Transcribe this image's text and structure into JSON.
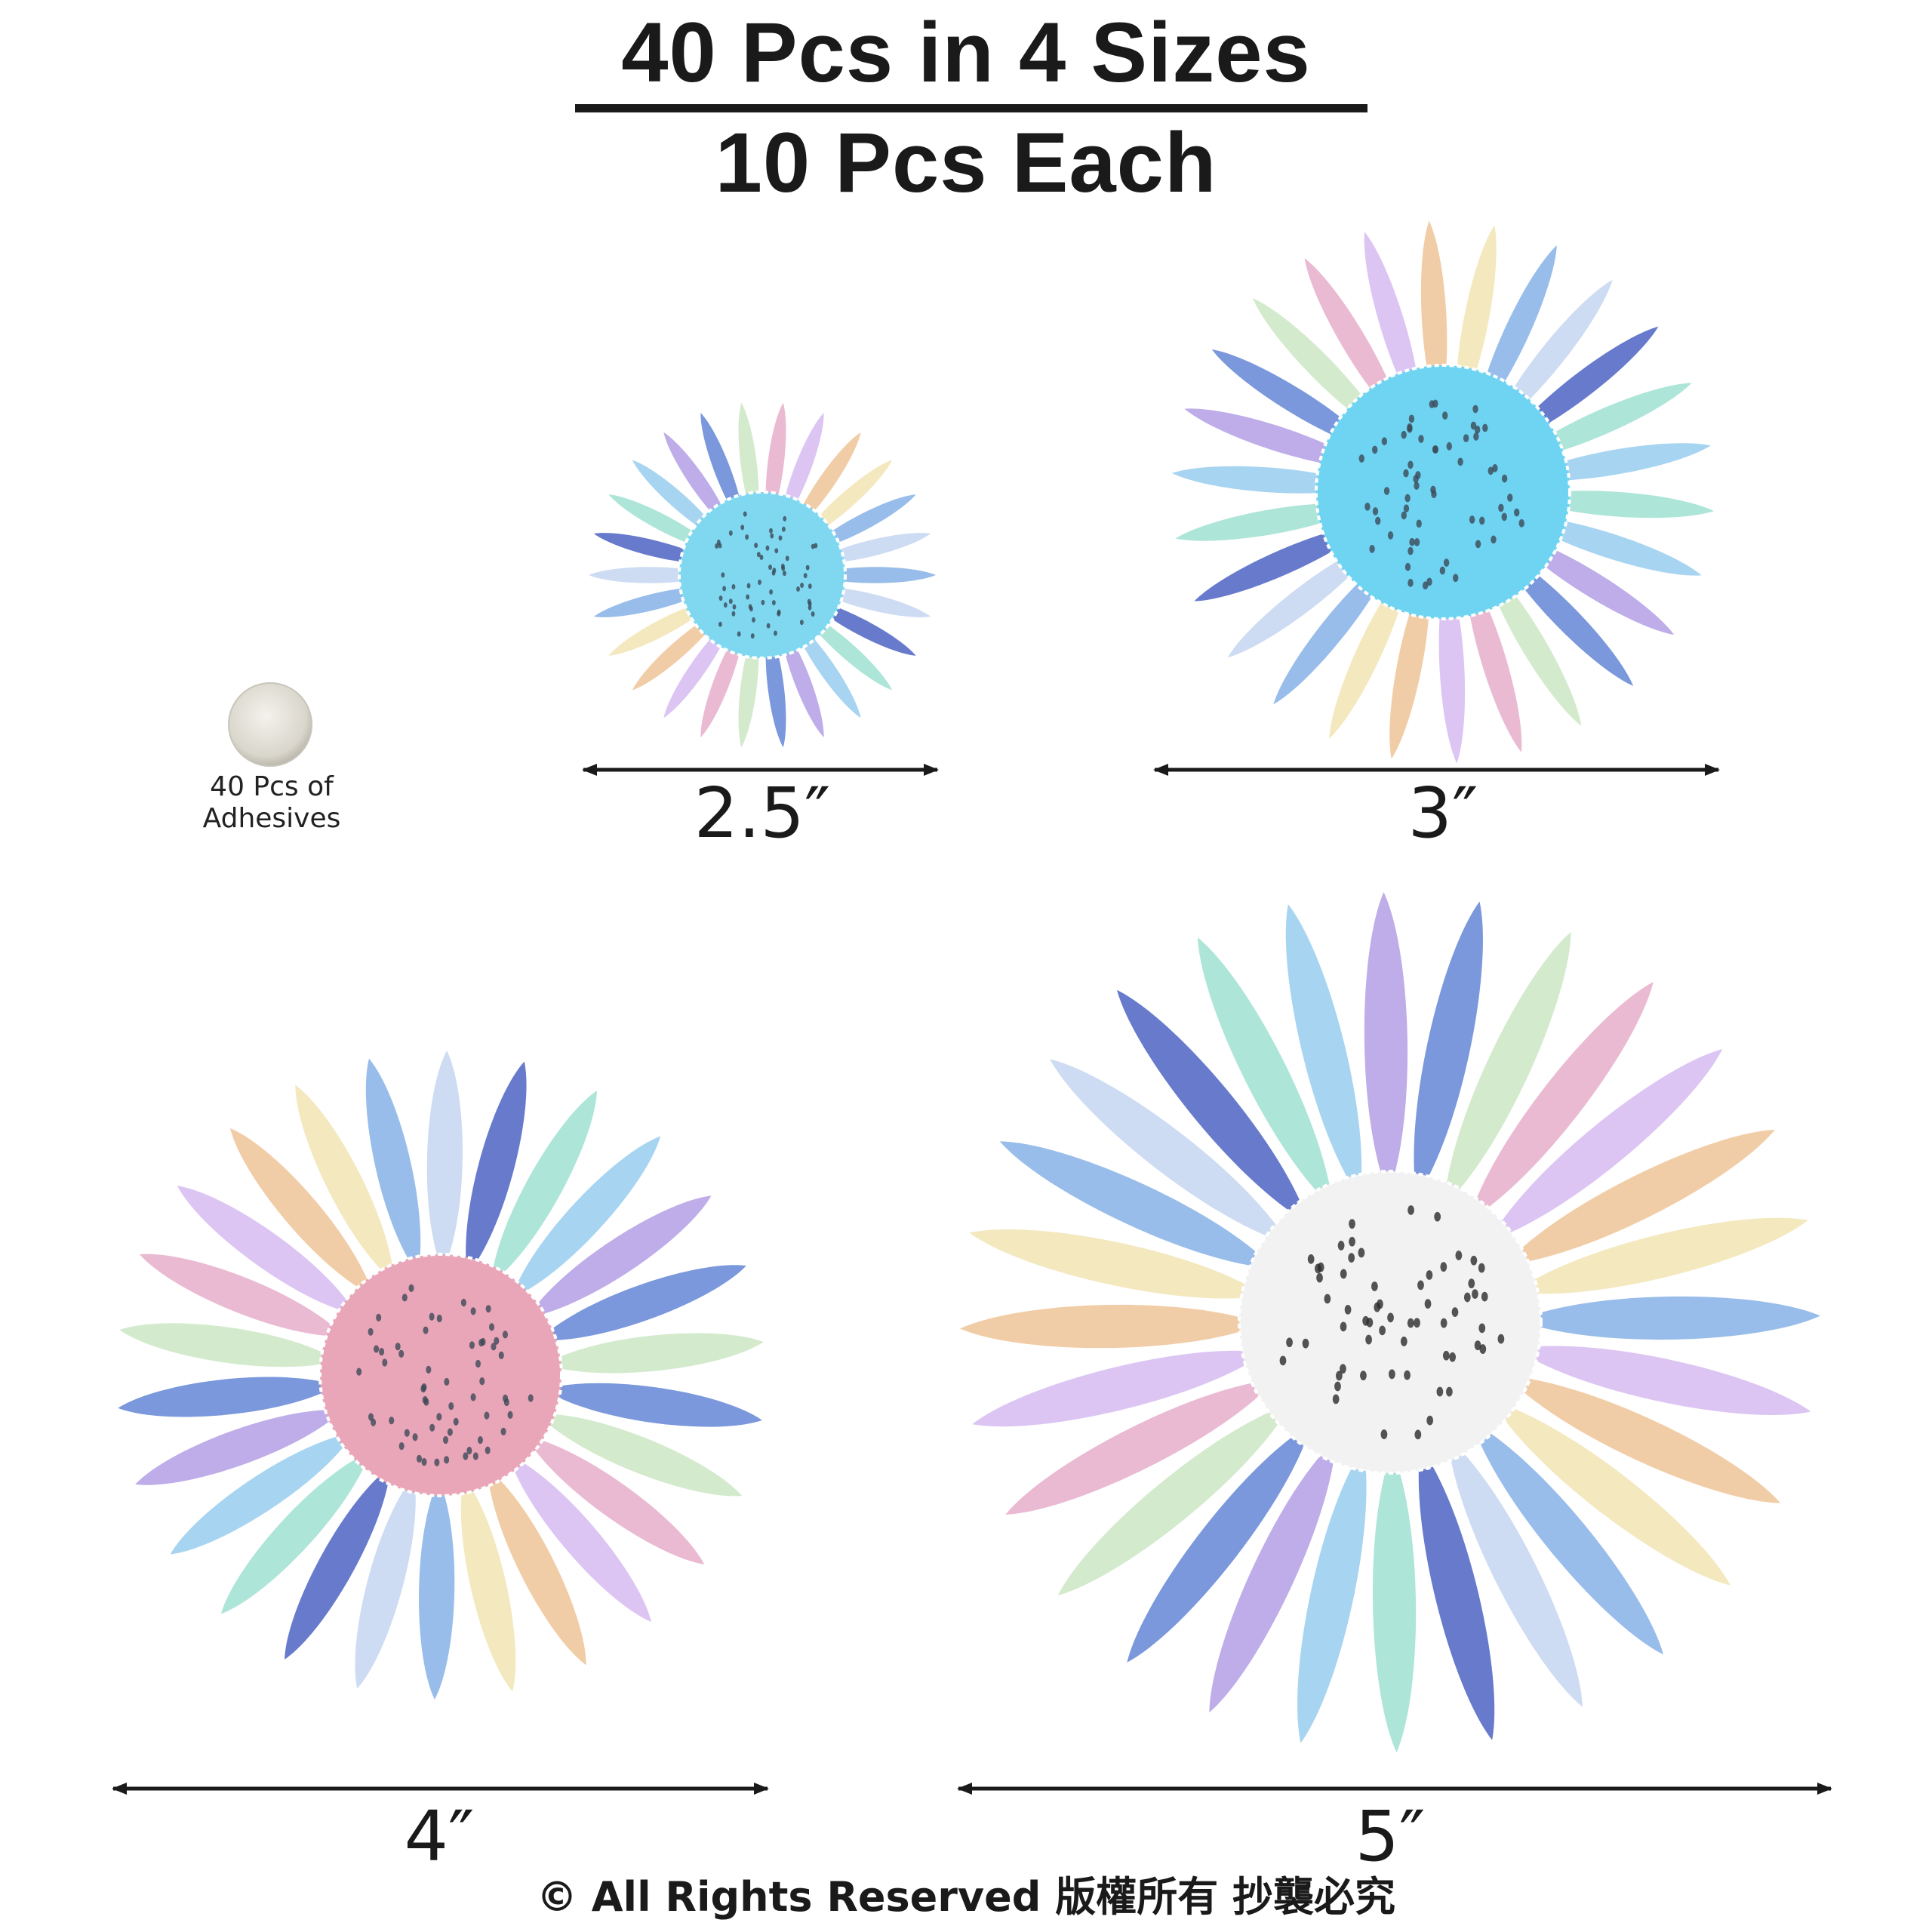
{
  "header": {
    "title_line1": "40 Pcs in 4 Sizes",
    "title_line2": "10 Pcs Each"
  },
  "adhesive": {
    "label": "40 Pcs of\nAdhesives"
  },
  "sizes": [
    {
      "label": "2.5″",
      "center_color": "#7fd8f0"
    },
    {
      "label": "3″",
      "center_color": "#6fd4f2"
    },
    {
      "label": "4″",
      "center_color": "#e9a6b8"
    },
    {
      "label": "5″",
      "center_color": "#f2f2f2"
    }
  ],
  "footer": {
    "copyright": "© All Rights Reserved 版權所有 抄襲必究"
  },
  "colors": {
    "text": "#1a1a1a",
    "petal_palette": [
      "#8fb7e8",
      "#b9a6e6",
      "#f0c9a0",
      "#a7e3d6",
      "#e8b4cf",
      "#c9d9f2",
      "#6f8fd8",
      "#f2e6b8",
      "#9fd0f0",
      "#d9c0f2",
      "#5a6fc8",
      "#cfe8c9"
    ]
  }
}
